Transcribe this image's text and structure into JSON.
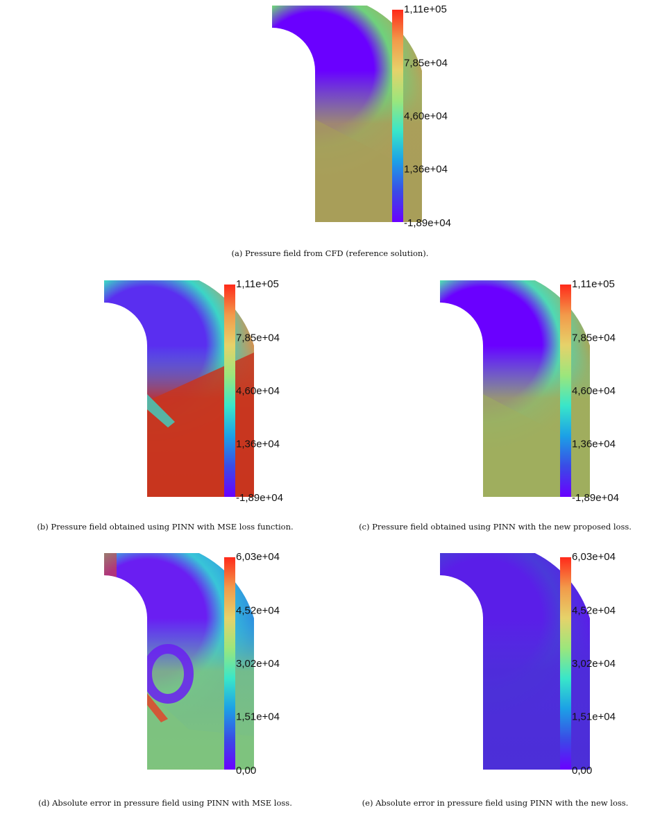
{
  "figure": {
    "colors": {
      "rainbow_stops": [
        "#6a00ff",
        "#3a4be6",
        "#1ca0e6",
        "#39e6c9",
        "#9be67c",
        "#e6d26a",
        "#f29a4a",
        "#ff2a1a"
      ]
    },
    "panels": [
      {
        "id": "a",
        "caption": "(a) Pressure field from CFD (reference solution).",
        "colorbar_ticks": [
          "1,11e+05",
          "7,85e+04",
          "4,60e+04",
          "1,36e+04",
          "-1,89e+04"
        ],
        "field": "reference",
        "colors": {
          "outer": "#b5a35a",
          "mid": "#6fd17c",
          "inner": "#6a00ff",
          "bottom": "#a89e5a"
        }
      },
      {
        "id": "b",
        "caption": "(b) Pressure field obtained using PINN with MSE loss function.",
        "colorbar_ticks": [
          "1,11e+05",
          "7,85e+04",
          "4,60e+04",
          "1,36e+04",
          "-1,89e+04"
        ],
        "field": "mse",
        "colors": {
          "outer": "#d4914f",
          "mid": "#3bd5c6",
          "inner": "#5a2ef0",
          "bottom": "#c8351f"
        }
      },
      {
        "id": "c",
        "caption": "(c) Pressure field obtained using PINN with the new proposed loss.",
        "colorbar_ticks": [
          "1,11e+05",
          "7,85e+04",
          "4,60e+04",
          "1,36e+04",
          "-1,89e+04"
        ],
        "field": "new",
        "colors": {
          "outer": "#a8a659",
          "mid": "#4fd9b4",
          "inner": "#6a00ff",
          "bottom": "#9fae5e"
        }
      },
      {
        "id": "d",
        "caption": "(d) Absolute error in pressure field using PINN with MSE loss.",
        "colorbar_ticks": [
          "6,03e+04",
          "4,52e+04",
          "3,02e+04",
          "1,51e+04",
          "0,00"
        ],
        "field": "error_mse",
        "colors": {
          "outer": "#2e8fe0",
          "mid": "#38c5d8",
          "inner": "#6a1ef2",
          "bottom": "#7fc37e",
          "hot": "#e0452a"
        }
      },
      {
        "id": "e",
        "caption": "(e) Absolute error in pressure field using PINN with the new loss.",
        "colorbar_ticks": [
          "6,03e+04",
          "4,52e+04",
          "3,02e+04",
          "1,51e+04",
          "0,00"
        ],
        "field": "error_new",
        "colors": {
          "outer": "#5a1ee8",
          "mid": "#4a3ad9",
          "inner": "#5a1ee8",
          "bottom": "#4c2fd8"
        }
      }
    ]
  }
}
